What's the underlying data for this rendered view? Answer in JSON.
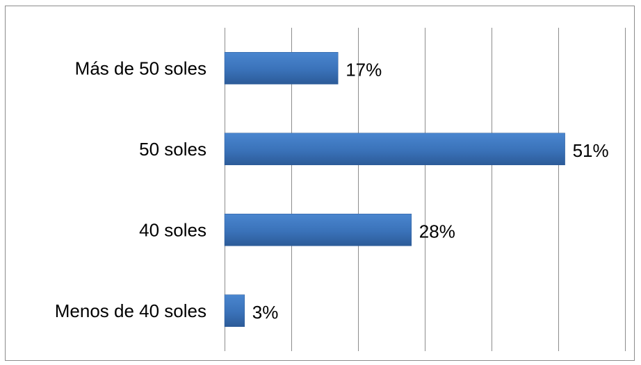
{
  "chart_data": {
    "type": "bar",
    "orientation": "horizontal",
    "categories": [
      "Más de 50 soles",
      "50 soles",
      "40 soles",
      "Menos de 40 soles"
    ],
    "values": [
      17,
      51,
      28,
      3
    ],
    "value_labels": [
      "17%",
      "51%",
      "28%",
      "3%"
    ],
    "unit": "%",
    "xlim": [
      0,
      60
    ],
    "x_grid_step": 10,
    "grid": true,
    "x_tick_labels_visible": false,
    "bar_color": "#3a72b9",
    "legend": "none"
  }
}
